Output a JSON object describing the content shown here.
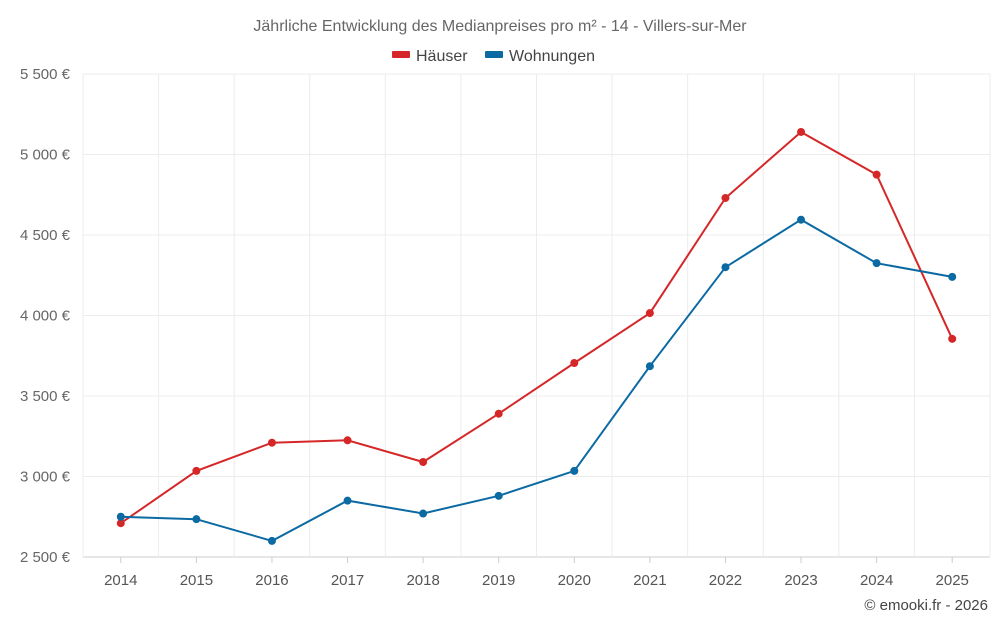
{
  "chart_data": {
    "type": "line",
    "title": "Jährliche Entwicklung des Medianpreises pro m² - 14 - Villers-sur-Mer",
    "categories": [
      "2014",
      "2015",
      "2016",
      "2017",
      "2018",
      "2019",
      "2020",
      "2021",
      "2022",
      "2023",
      "2024",
      "2025"
    ],
    "series": [
      {
        "name": "Häuser",
        "color": "#d62728",
        "values": [
          2710,
          3035,
          3210,
          3225,
          3090,
          3390,
          3705,
          4015,
          4730,
          5140,
          4875,
          3855
        ]
      },
      {
        "name": "Wohnungen",
        "color": "#0b6aa2",
        "values": [
          2750,
          2735,
          2600,
          2850,
          2770,
          2880,
          3035,
          3685,
          4300,
          4595,
          4325,
          4240
        ]
      }
    ],
    "ylim": [
      2500,
      5500
    ],
    "yticks": [
      2500,
      3000,
      3500,
      4000,
      4500,
      5000,
      5500
    ],
    "ytick_labels": [
      "2 500 €",
      "3 000 €",
      "3 500 €",
      "4 000 €",
      "4 500 €",
      "5 000 €",
      "5 500 €"
    ],
    "grid": true,
    "legend_position": "top-center",
    "credit": "© emooki.fr - 2026"
  }
}
